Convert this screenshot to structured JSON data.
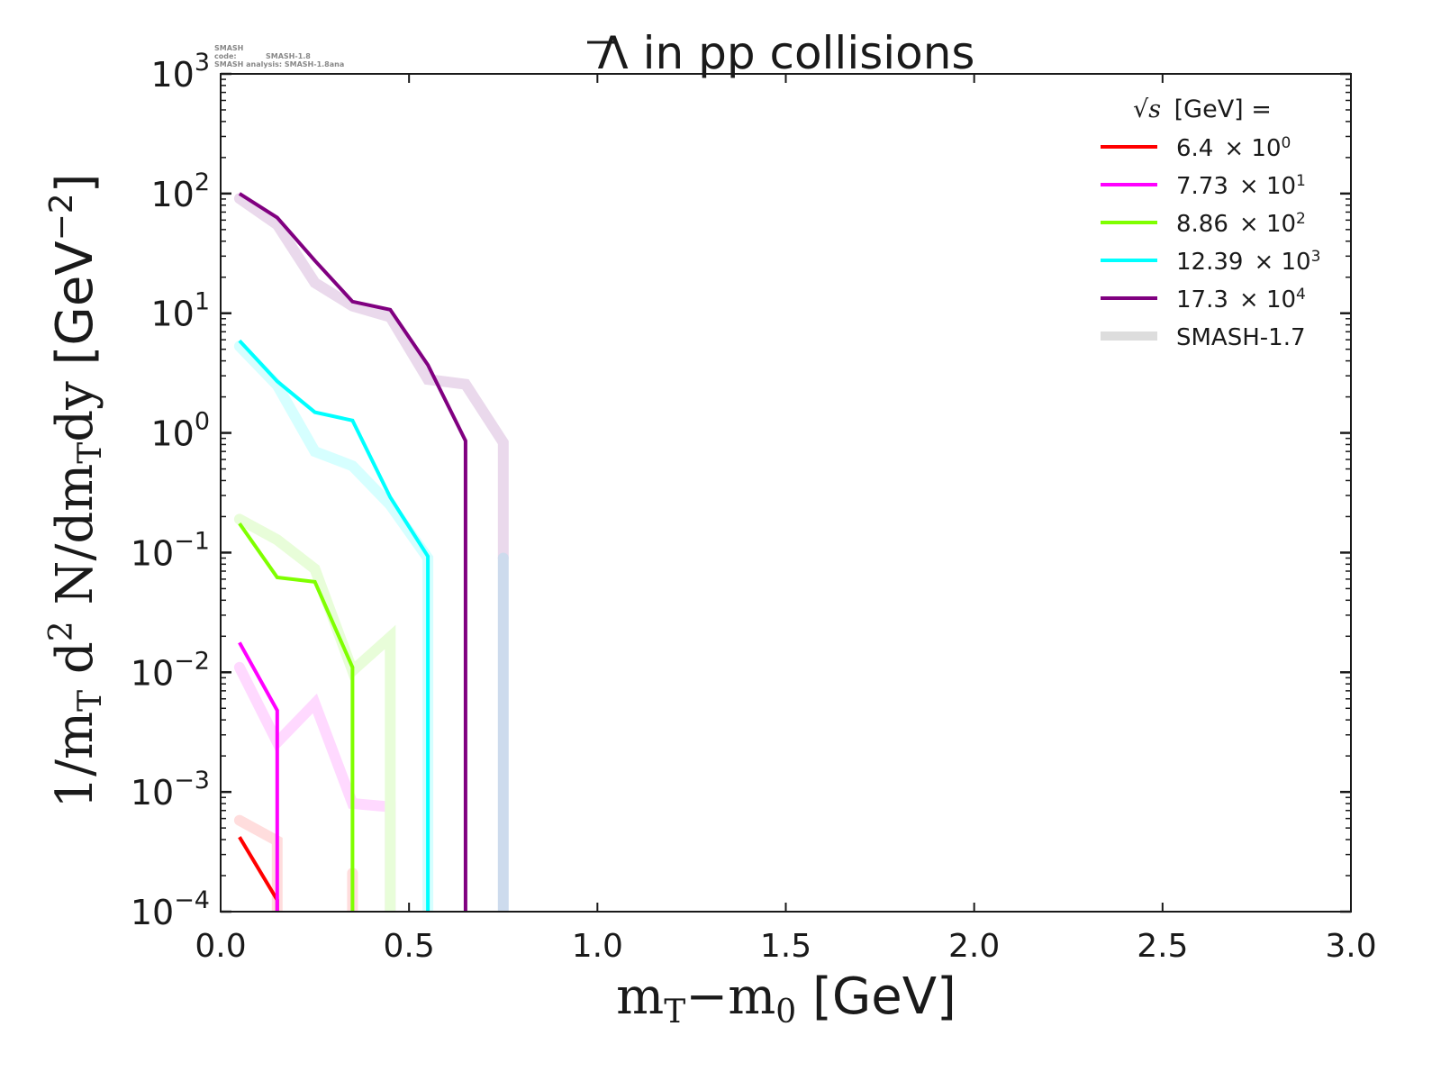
{
  "watermark": {
    "code_label": "SMASH code:",
    "code_value": "SMASH-1.8",
    "analysis_label": "SMASH analysis:",
    "analysis_value": "SMASH-1.8ana"
  },
  "chart_data": {
    "type": "line",
    "title": "Λ̅ in pp collisions",
    "title_parts": {
      "particle": "Λ",
      "rest": " in pp collisions"
    },
    "xlabel": "mₜ−m₀ [GeV]",
    "xlabel_parts": {
      "a": "m",
      "a_sub": "T",
      "minus": "−m",
      "b_sub": "0",
      "unit": " [GeV]"
    },
    "ylabel": "1/m_T d^2 N/dm_T dy [GeV^-2]",
    "ylabel_parts": {
      "p1": "1/m",
      "s1": "T",
      "p2": " d",
      "sup2": "2",
      "p3": " N/dm",
      "s2": "T",
      "p4": "dy",
      "unit": " [GeV",
      "unit_sup": "−2",
      "close": "]"
    },
    "xscale": "linear",
    "yscale": "log",
    "xlim": [
      0.0,
      3.0
    ],
    "ylim": [
      0.0001,
      1000
    ],
    "xticks": [
      {
        "value": 0.0,
        "label": "0.0"
      },
      {
        "value": 0.5,
        "label": "0.5"
      },
      {
        "value": 1.0,
        "label": "1.0"
      },
      {
        "value": 1.5,
        "label": "1.5"
      },
      {
        "value": 2.0,
        "label": "2.0"
      },
      {
        "value": 2.5,
        "label": "2.5"
      },
      {
        "value": 3.0,
        "label": "3.0"
      }
    ],
    "yticks": [
      {
        "value": 0.0001,
        "base": "10",
        "exp": "−4"
      },
      {
        "value": 0.001,
        "base": "10",
        "exp": "−3"
      },
      {
        "value": 0.01,
        "base": "10",
        "exp": "−2"
      },
      {
        "value": 0.1,
        "base": "10",
        "exp": "−1"
      },
      {
        "value": 1,
        "base": "10",
        "exp": "0"
      },
      {
        "value": 10,
        "base": "10",
        "exp": "1"
      },
      {
        "value": 100,
        "base": "10",
        "exp": "2"
      },
      {
        "value": 1000,
        "base": "10",
        "exp": "3"
      }
    ],
    "grid": false,
    "legend": {
      "position": "top-right",
      "header_sqrt": "√s",
      "header_text": " [GeV] =",
      "entries": [
        {
          "mantissa": "6.4",
          "times": "× 10",
          "exp": "0",
          "color": "#ff0000",
          "style": "current"
        },
        {
          "mantissa": "7.73",
          "times": "× 10",
          "exp": "1",
          "color": "#ff00ff",
          "style": "current"
        },
        {
          "mantissa": "8.86",
          "times": "× 10",
          "exp": "2",
          "color": "#7fff00",
          "style": "current"
        },
        {
          "mantissa": "12.39",
          "times": "× 10",
          "exp": "3",
          "color": "#00ffff",
          "style": "current"
        },
        {
          "mantissa": "17.3",
          "times": "× 10",
          "exp": "4",
          "color": "#800080",
          "style": "current"
        },
        {
          "label": "SMASH-1.7",
          "color": "#dddddd",
          "style": "reference"
        }
      ]
    },
    "series": [
      {
        "name": "sqrt(s)=6.4 GeV (x10^0)",
        "version": "SMASH-1.8",
        "color": "#ff0000",
        "x": [
          0.05,
          0.15,
          0.15
        ],
        "y": [
          0.00042,
          0.000125,
          1e-05
        ]
      },
      {
        "name": "sqrt(s)=7.73 GeV (x10^1)",
        "version": "SMASH-1.8",
        "color": "#ff00ff",
        "x": [
          0.05,
          0.15,
          0.15
        ],
        "y": [
          0.0177,
          0.0048,
          1e-05
        ]
      },
      {
        "name": "sqrt(s)=8.86 GeV (x10^2)",
        "version": "SMASH-1.8",
        "color": "#7fff00",
        "x": [
          0.05,
          0.15,
          0.25,
          0.35,
          0.35
        ],
        "y": [
          0.175,
          0.062,
          0.057,
          0.011,
          1e-05
        ]
      },
      {
        "name": "sqrt(s)=12.39 GeV (x10^3)",
        "version": "SMASH-1.8",
        "color": "#00ffff",
        "x": [
          0.05,
          0.15,
          0.25,
          0.35,
          0.45,
          0.55,
          0.55
        ],
        "y": [
          5.9,
          2.7,
          1.49,
          1.27,
          0.29,
          0.093,
          1e-05
        ]
      },
      {
        "name": "sqrt(s)=17.3 GeV (x10^4)",
        "version": "SMASH-1.8",
        "color": "#800080",
        "x": [
          0.05,
          0.15,
          0.25,
          0.35,
          0.45,
          0.55,
          0.65,
          0.65
        ],
        "y": [
          100,
          63,
          27.5,
          12.5,
          10.7,
          3.7,
          0.86,
          1e-05
        ]
      },
      {
        "name": "sqrt(s)=6.4 GeV (x10^0) reference",
        "version": "SMASH-1.7",
        "color": "#ffdddd",
        "x": [
          0.05,
          0.15,
          0.15
        ],
        "y": [
          0.00058,
          0.00039,
          1e-05
        ]
      },
      {
        "name": "sqrt(s)=6.4 GeV (x10^0) reference tail",
        "version": "SMASH-1.7",
        "color": "#ffdddd",
        "x": [
          0.35,
          0.35
        ],
        "y": [
          0.00021,
          1e-05
        ]
      },
      {
        "name": "sqrt(s)=7.73 GeV (x10^1) reference",
        "version": "SMASH-1.7",
        "color": "#ffd9ff",
        "x": [
          0.05,
          0.15,
          0.25,
          0.35,
          0.45,
          0.45
        ],
        "y": [
          0.011,
          0.0026,
          0.0055,
          0.0008,
          0.00075,
          1e-05
        ]
      },
      {
        "name": "sqrt(s)=8.86 GeV (x10^2) reference",
        "version": "SMASH-1.7",
        "color": "#e8fdd9",
        "x": [
          0.05,
          0.15,
          0.25,
          0.35,
          0.45,
          0.45
        ],
        "y": [
          0.19,
          0.128,
          0.073,
          0.0103,
          0.0197,
          1e-05
        ]
      },
      {
        "name": "sqrt(s)=12.39 GeV (x10^3) reference",
        "version": "SMASH-1.7",
        "color": "#d6ffff",
        "x": [
          0.05,
          0.15,
          0.25,
          0.35,
          0.45,
          0.55,
          0.55
        ],
        "y": [
          5.3,
          2.5,
          0.7,
          0.53,
          0.25,
          0.09,
          1e-05
        ]
      },
      {
        "name": "sqrt(s)=17.3 GeV (x10^4) reference",
        "version": "SMASH-1.7",
        "color": "#ead9ec",
        "x": [
          0.05,
          0.15,
          0.25,
          0.35,
          0.45,
          0.55,
          0.65,
          0.75,
          0.75
        ],
        "y": [
          91,
          55,
          18,
          11.5,
          9.3,
          2.8,
          2.55,
          0.83,
          0.09
        ]
      },
      {
        "name": "overlapping reference tail",
        "version": "SMASH-1.7",
        "color": "#cddbed",
        "x": [
          0.75,
          0.75
        ],
        "y": [
          0.09,
          1e-05
        ]
      }
    ]
  }
}
